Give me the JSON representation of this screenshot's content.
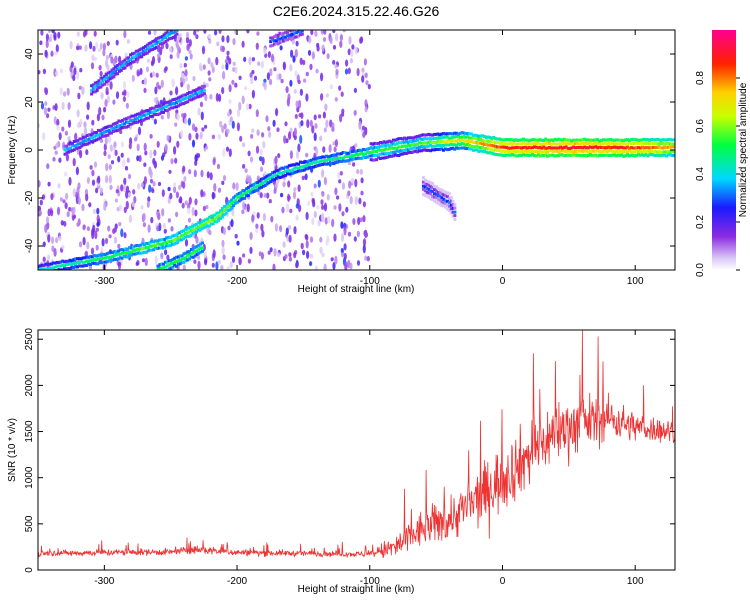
{
  "title": "C2E6.2024.315.22.46.G26",
  "chart_data": [
    {
      "type": "heatmap",
      "xlabel": "Height of straight line (km)",
      "ylabel": "Frequency (Hz)",
      "xlim": [
        -350,
        130
      ],
      "ylim": [
        -50,
        50
      ],
      "x_ticks": [
        -300,
        -200,
        -100,
        0,
        100
      ],
      "y_ticks": [
        -40,
        -20,
        0,
        20,
        40
      ],
      "colorbar": {
        "label": "Normalized spectral amplitude",
        "range": [
          0,
          1
        ],
        "ticks": [
          "0.0",
          "0.2",
          "0.4",
          "0.6",
          "0.8"
        ],
        "colormap": "rainbow: white/lavender (0) - purple - blue - cyan - green - yellow - red - magenta (1)"
      },
      "features": [
        {
          "name": "",
          "kind": "noise-field",
          "x_range": [
            -350,
            -100
          ],
          "y_range": [
            -50,
            50
          ],
          "amplitude": 0.15
        },
        {
          "name": "",
          "kind": "track",
          "points": [
            [
              -350,
              -50
            ],
            [
              -300,
              -45
            ],
            [
              -250,
              -38
            ],
            [
              -215,
              -28
            ],
            [
              -200,
              -20
            ],
            [
              -170,
              -10
            ],
            [
              -140,
              -5
            ],
            [
              -110,
              -2
            ],
            [
              -90,
              0
            ],
            [
              -60,
              3
            ],
            [
              -30,
              4
            ],
            [
              0,
              1
            ],
            [
              50,
              1
            ],
            [
              100,
              1
            ],
            [
              130,
              1
            ]
          ],
          "amplitude": [
            0.4,
            0.5,
            0.55,
            0.6,
            0.5,
            0.45,
            0.45,
            0.5,
            0.55,
            0.55,
            0.7,
            0.85,
            0.9,
            0.85,
            0.75
          ]
        },
        {
          "name": "",
          "kind": "track",
          "points": [
            [
              -330,
              0
            ],
            [
              -290,
              10
            ],
            [
              -245,
              20
            ],
            [
              -225,
              25
            ]
          ],
          "amplitude": 0.35
        },
        {
          "name": "",
          "kind": "track",
          "points": [
            [
              -310,
              25
            ],
            [
              -280,
              38
            ],
            [
              -245,
              50
            ]
          ],
          "amplitude": 0.35
        },
        {
          "name": "",
          "kind": "track",
          "points": [
            [
              -260,
              -50
            ],
            [
              -240,
              -45
            ],
            [
              -225,
              -40
            ]
          ],
          "amplitude": 0.5
        },
        {
          "name": "",
          "kind": "track",
          "points": [
            [
              -175,
              45
            ],
            [
              -150,
              50
            ]
          ],
          "amplitude": 0.3
        },
        {
          "name": "",
          "kind": "track",
          "points": [
            [
              -60,
              -15
            ],
            [
              -40,
              -22
            ],
            [
              -35,
              -27
            ]
          ],
          "amplitude": 0.3
        }
      ]
    },
    {
      "type": "line",
      "xlabel": "Height of straight line (km)",
      "ylabel": "SNR (10 * v/v)",
      "xlim": [
        -350,
        130
      ],
      "ylim": [
        0,
        2600
      ],
      "x_ticks": [
        -300,
        -200,
        -100,
        0,
        100
      ],
      "y_ticks": [
        0,
        500,
        1000,
        1500,
        2000,
        2500
      ],
      "color": "#ee3333",
      "series": [
        {
          "name": "",
          "x": [
            -350,
            -300,
            -250,
            -230,
            -200,
            -150,
            -100,
            -80,
            -60,
            -40,
            -20,
            0,
            20,
            40,
            60,
            80,
            100,
            130
          ],
          "values": [
            180,
            190,
            195,
            220,
            190,
            180,
            170,
            250,
            450,
            550,
            750,
            1000,
            1250,
            1500,
            1600,
            1650,
            1550,
            1500
          ],
          "spread": [
            60,
            70,
            70,
            90,
            70,
            60,
            60,
            300,
            400,
            450,
            600,
            700,
            700,
            650,
            600,
            450,
            300,
            250
          ]
        }
      ]
    }
  ]
}
